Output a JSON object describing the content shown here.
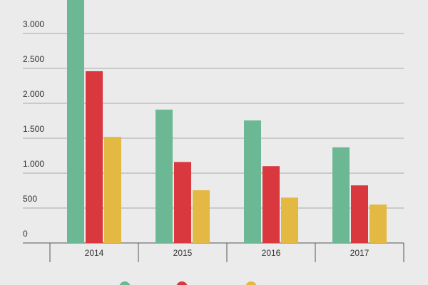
{
  "chart_data": {
    "type": "bar",
    "categories": [
      "2014",
      "2015",
      "2016",
      "2017"
    ],
    "series": [
      {
        "color": "#6db894",
        "values": [
          3480,
          1910,
          1755,
          1370
        ]
      },
      {
        "color": "#d9383f",
        "values": [
          2460,
          1160,
          1100,
          825
        ]
      },
      {
        "color": "#e3b944",
        "values": [
          1520,
          755,
          650,
          550
        ]
      }
    ],
    "ylim": [
      0,
      3480
    ],
    "yticks": [
      0,
      500,
      {
        "value": 1000,
        "label": "1.000"
      },
      {
        "value": 1500,
        "label": "1.500"
      },
      {
        "value": 2000,
        "label": "2.000"
      },
      {
        "value": 2500,
        "label": "2.500"
      },
      {
        "value": 3000,
        "label": "3.000"
      }
    ],
    "grid": true
  }
}
